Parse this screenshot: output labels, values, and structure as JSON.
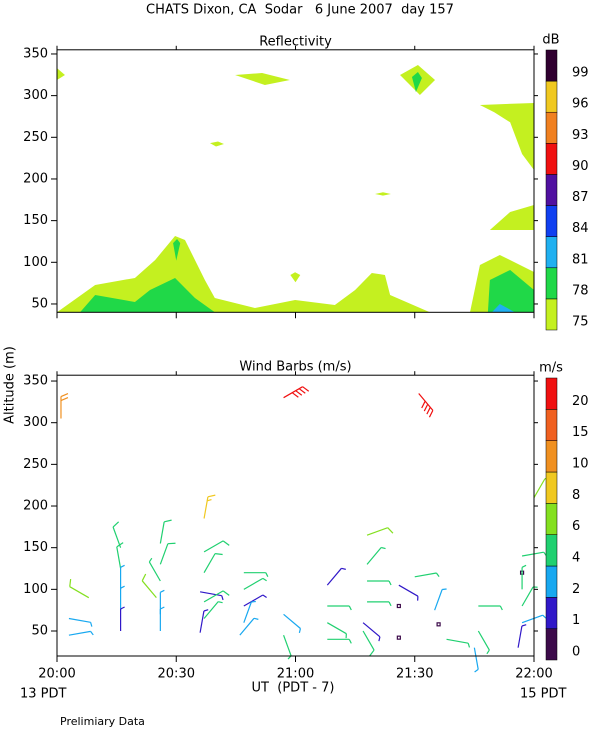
{
  "title": "CHATS Dixon, CA  Sodar   6 June 2007  day 157",
  "y_label": "Altitude (m)",
  "x_label": "UT  (PDT - 7)",
  "x_start_note": "13 PDT",
  "x_end_note": "15 PDT",
  "footnote": "Prelimiary Data",
  "chart_data": [
    {
      "type": "contour",
      "title": "Reflectivity",
      "xlim": [
        0,
        120
      ],
      "ylim": [
        40,
        355
      ],
      "yticks": [
        50,
        100,
        150,
        200,
        250,
        300,
        350
      ],
      "colorbar": {
        "label": "dB",
        "levels": [
          75,
          78,
          81,
          84,
          87,
          90,
          93,
          96,
          99
        ],
        "colors": [
          "#c4f020",
          "#20d848",
          "#20b0f0",
          "#1040f0",
          "#5010a0",
          "#f01010",
          "#f08020",
          "#f0c820",
          "#300030"
        ]
      },
      "regions": [
        {
          "level": 75,
          "points": [
            [
              0,
              40
            ],
            [
              9.6,
              72.8
            ],
            [
              19.6,
              81.2
            ],
            [
              24.7,
              102.8
            ],
            [
              29.7,
              131.6
            ],
            [
              32.2,
              126.8
            ],
            [
              37.2,
              78.8
            ],
            [
              39.7,
              57.2
            ],
            [
              49.8,
              45.2
            ],
            [
              59.9,
              54.8
            ],
            [
              69.9,
              48.8
            ],
            [
              75,
              66.8
            ],
            [
              79.2,
              87.2
            ],
            [
              82.5,
              84.8
            ],
            [
              83.8,
              60.8
            ],
            [
              93.8,
              40
            ]
          ]
        },
        {
          "level": 78,
          "points": [
            [
              5.8,
              40
            ],
            [
              9.6,
              60.8
            ],
            [
              19.6,
              52.4
            ],
            [
              23.4,
              66.8
            ],
            [
              29.7,
              81.2
            ],
            [
              34.7,
              57.2
            ],
            [
              39.7,
              40
            ]
          ]
        },
        {
          "level": 78,
          "points": [
            [
              29.2,
              123
            ],
            [
              30.2,
              128
            ],
            [
              31,
              123
            ],
            [
              30,
              102
            ]
          ]
        },
        {
          "level": 75,
          "points": [
            [
              103.9,
              40
            ],
            [
              106.4,
              96.8
            ],
            [
              111.4,
              108.8
            ],
            [
              120,
              88.4
            ],
            [
              120,
              40
            ]
          ]
        },
        {
          "level": 78,
          "points": [
            [
              108.4,
              40
            ],
            [
              108.9,
              78.8
            ],
            [
              114,
              90.8
            ],
            [
              120,
              66.8
            ],
            [
              120,
              40
            ]
          ]
        },
        {
          "level": 81,
          "points": [
            [
              109.4,
              40
            ],
            [
              111.4,
              50
            ],
            [
              115.2,
              40
            ]
          ]
        },
        {
          "level": 75,
          "points": [
            [
              108.9,
              138.8
            ],
            [
              114,
              160.4
            ],
            [
              120,
              168.8
            ],
            [
              120,
              138.8
            ]
          ]
        },
        {
          "level": 75,
          "points": [
            [
              106.4,
              288.8
            ],
            [
              120,
              291.2
            ],
            [
              120,
              210.8
            ],
            [
              117,
              230
            ],
            [
              114,
              268
            ],
            [
              110,
              280
            ]
          ]
        },
        {
          "level": 75,
          "points": [
            [
              86.3,
              324.8
            ],
            [
              90.8,
              336.8
            ],
            [
              95.1,
              318.8
            ],
            [
              91.3,
              300.8
            ]
          ]
        },
        {
          "level": 78,
          "points": [
            [
              89.3,
              322.4
            ],
            [
              90.8,
              328.4
            ],
            [
              91.8,
              321.2
            ],
            [
              90.3,
              304.4
            ]
          ]
        },
        {
          "level": 75,
          "points": [
            [
              44.8,
              324.8
            ],
            [
              51.6,
              327.2
            ],
            [
              58.6,
              318.8
            ],
            [
              52.3,
              312.8
            ]
          ]
        },
        {
          "level": 75,
          "points": [
            [
              0,
              333
            ],
            [
              2,
              324.8
            ],
            [
              0,
              318.8
            ]
          ]
        },
        {
          "level": 75,
          "points": [
            [
              38.5,
              243
            ],
            [
              40.5,
              245
            ],
            [
              42,
              242
            ],
            [
              40,
              239
            ]
          ]
        },
        {
          "level": 75,
          "points": [
            [
              58.7,
              84.8
            ],
            [
              59.9,
              88
            ],
            [
              61.2,
              84.8
            ],
            [
              60,
              76
            ]
          ]
        },
        {
          "level": 75,
          "points": [
            [
              80,
              182
            ],
            [
              82,
              184
            ],
            [
              84,
              182
            ],
            [
              82,
              180
            ]
          ]
        }
      ]
    },
    {
      "type": "barbs",
      "title": "Wind Barbs (m/s)",
      "xlim": [
        0,
        120
      ],
      "ylim": [
        20,
        357
      ],
      "yticks": [
        50,
        100,
        150,
        200,
        250,
        300,
        350
      ],
      "xticks": [
        {
          "value": 0,
          "label": "20:00"
        },
        {
          "value": 30,
          "label": "20:30"
        },
        {
          "value": 60,
          "label": "21:00"
        },
        {
          "value": 90,
          "label": "21:30"
        },
        {
          "value": 120,
          "label": "22:00"
        }
      ],
      "colorbar": {
        "label": "m/s",
        "levels": [
          0,
          1,
          2,
          4,
          6,
          8,
          10,
          15,
          20
        ],
        "colors": [
          "#3c0a4a",
          "#3018c8",
          "#18a8f0",
          "#20d070",
          "#84e020",
          "#f0c820",
          "#f09020",
          "#f06020",
          "#f01010"
        ]
      },
      "x": [
        3,
        3,
        8,
        1,
        16,
        16,
        16,
        16,
        16,
        26,
        26,
        26,
        25,
        26,
        26,
        37,
        37,
        37,
        36,
        37,
        37,
        36,
        47,
        47,
        47,
        47,
        46,
        57,
        57,
        57,
        68,
        68,
        68,
        68,
        78,
        78,
        78,
        78,
        77,
        77,
        86,
        86,
        86,
        91,
        90,
        95,
        96,
        98,
        106,
        106,
        105,
        117,
        117,
        117,
        117,
        117,
        116,
        120
      ],
      "y": [
        65,
        45,
        90,
        305,
        150,
        125,
        100,
        75,
        50,
        155,
        130,
        110,
        90,
        70,
        50,
        185,
        145,
        120,
        97,
        85,
        65,
        48,
        120,
        100,
        80,
        60,
        45,
        330,
        70,
        45,
        105,
        80,
        60,
        40,
        165,
        130,
        110,
        85,
        60,
        50,
        105,
        80,
        42,
        335,
        115,
        75,
        58,
        40,
        80,
        50,
        30,
        140,
        120,
        100,
        80,
        60,
        30,
        210
      ],
      "speed": [
        3,
        3,
        7,
        10,
        5,
        5,
        3,
        3,
        1,
        5,
        5,
        4,
        6,
        3,
        3,
        8,
        5,
        5,
        1,
        5,
        4,
        1,
        4,
        4,
        1,
        3,
        3,
        20,
        3,
        4,
        1,
        4,
        4,
        4,
        6,
        4,
        4,
        4,
        1,
        5,
        1,
        0.5,
        0.5,
        20,
        4,
        3,
        0.5,
        4,
        4,
        4,
        3,
        4,
        0.5,
        4,
        4,
        3,
        1,
        7
      ],
      "dir": [
        100,
        80,
        300,
        0,
        340,
        350,
        0,
        0,
        0,
        10,
        20,
        330,
        320,
        0,
        0,
        10,
        60,
        30,
        100,
        60,
        40,
        10,
        90,
        60,
        60,
        20,
        40,
        60,
        130,
        160,
        40,
        90,
        120,
        90,
        70,
        40,
        90,
        90,
        130,
        150,
        120,
        0,
        0,
        140,
        80,
        20,
        0,
        100,
        90,
        150,
        170,
        80,
        0,
        0,
        30,
        70,
        10,
        30
      ]
    }
  ]
}
